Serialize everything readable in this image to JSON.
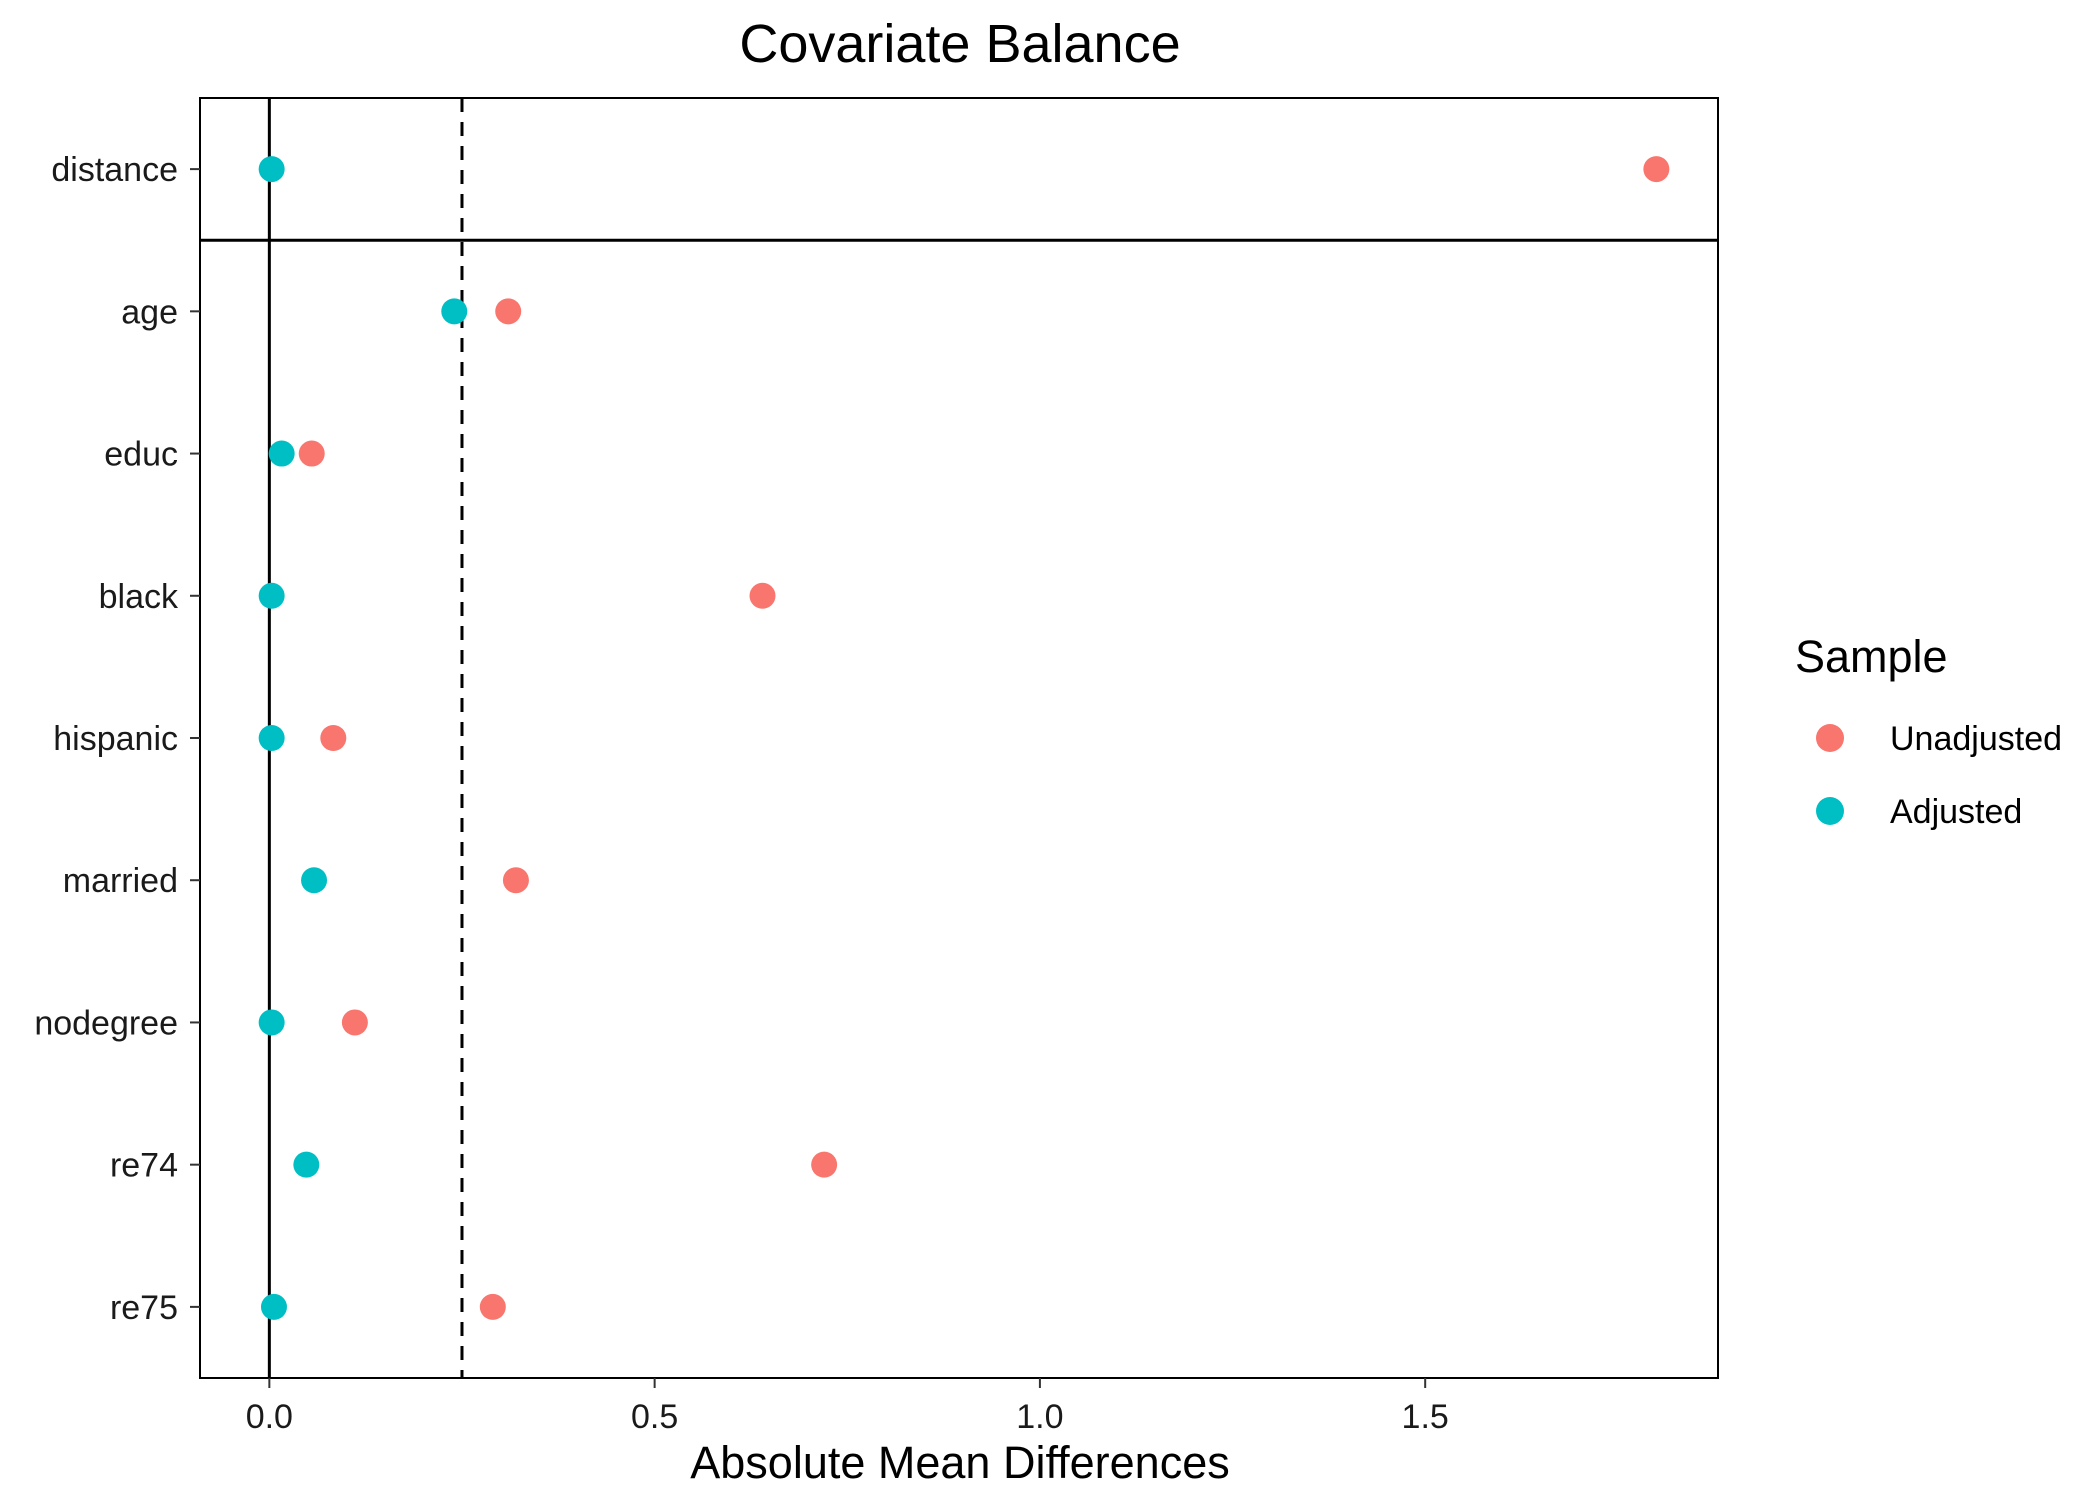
{
  "chart_data": {
    "type": "scatter",
    "title": "Covariate Balance",
    "xlabel": "Absolute Mean Differences",
    "ylabel": "",
    "categories": [
      "distance",
      "age",
      "educ",
      "black",
      "hispanic",
      "married",
      "nodegree",
      "re74",
      "re75"
    ],
    "series": [
      {
        "name": "Unadjusted",
        "color": "#F8766D",
        "values": [
          1.8,
          0.31,
          0.055,
          0.64,
          0.083,
          0.32,
          0.111,
          0.72,
          0.29
        ]
      },
      {
        "name": "Adjusted",
        "color": "#00BFC4",
        "values": [
          0.003,
          0.24,
          0.016,
          0.003,
          0.003,
          0.058,
          0.003,
          0.048,
          0.006
        ]
      }
    ],
    "xlim": [
      -0.09,
      1.88
    ],
    "xticks": [
      0.0,
      0.5,
      1.0,
      1.5
    ],
    "xtick_labels": [
      "0.0",
      "0.5",
      "1.0",
      "1.5"
    ],
    "reference_lines": [
      {
        "x": 0,
        "style": "solid"
      },
      {
        "x": 0.25,
        "style": "dashed"
      }
    ],
    "legend": {
      "title": "Sample",
      "position": "right"
    },
    "grid": false
  }
}
